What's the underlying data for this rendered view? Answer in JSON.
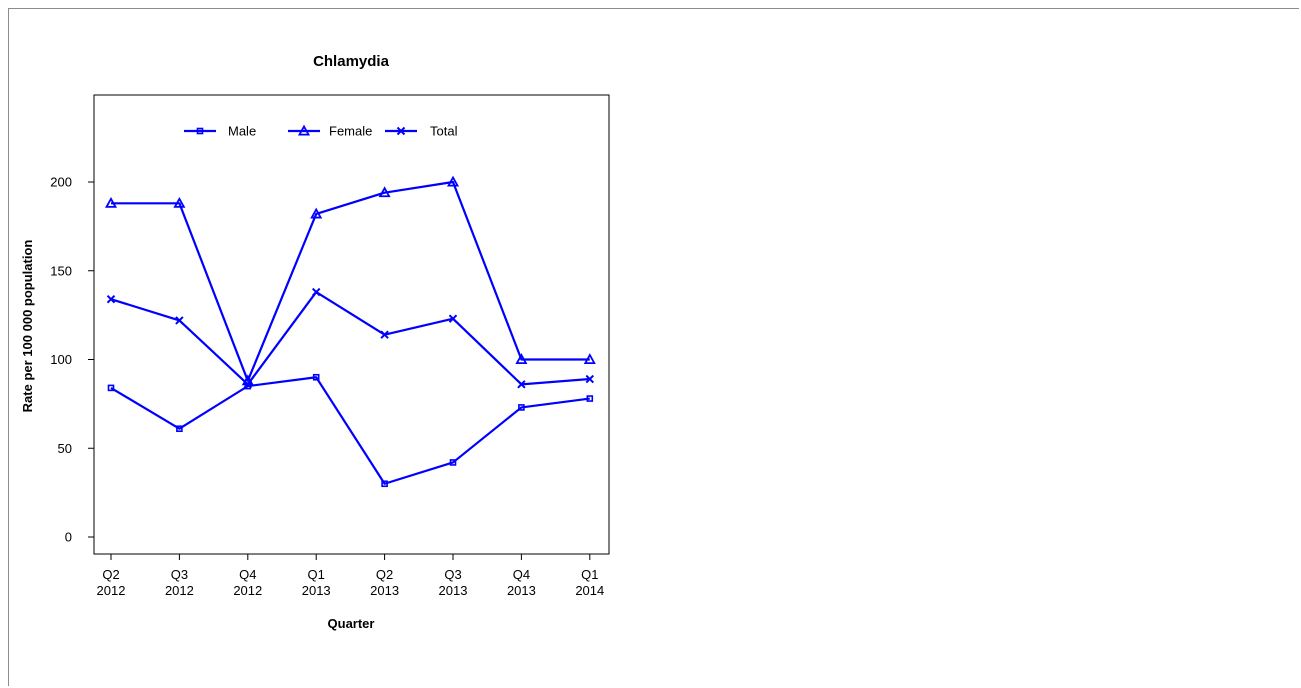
{
  "chart_data": {
    "type": "line",
    "title": "Chlamydia",
    "xlabel": "Quarter",
    "ylabel": "Rate per 100 000 population",
    "categories": [
      [
        "Q2",
        "2012"
      ],
      [
        "Q3",
        "2012"
      ],
      [
        "Q4",
        "2012"
      ],
      [
        "Q1",
        "2013"
      ],
      [
        "Q2",
        "2013"
      ],
      [
        "Q3",
        "2013"
      ],
      [
        "Q4",
        "2013"
      ],
      [
        "Q1",
        "2014"
      ]
    ],
    "ylim": [
      -5,
      250
    ],
    "yticks": [
      0,
      50,
      100,
      150,
      200
    ],
    "grid": false,
    "legend": "top-center",
    "series": [
      {
        "name": "Male",
        "marker": "square",
        "values": [
          84,
          61,
          85,
          90,
          30,
          42,
          73,
          78
        ]
      },
      {
        "name": "Female",
        "marker": "triangle",
        "values": [
          188,
          188,
          88,
          182,
          194,
          200,
          100,
          100
        ]
      },
      {
        "name": "Total",
        "marker": "x",
        "values": [
          134,
          122,
          86,
          138,
          114,
          123,
          86,
          89
        ]
      }
    ],
    "colors": {
      "series": "#0000ff",
      "axis": "#000000"
    }
  }
}
